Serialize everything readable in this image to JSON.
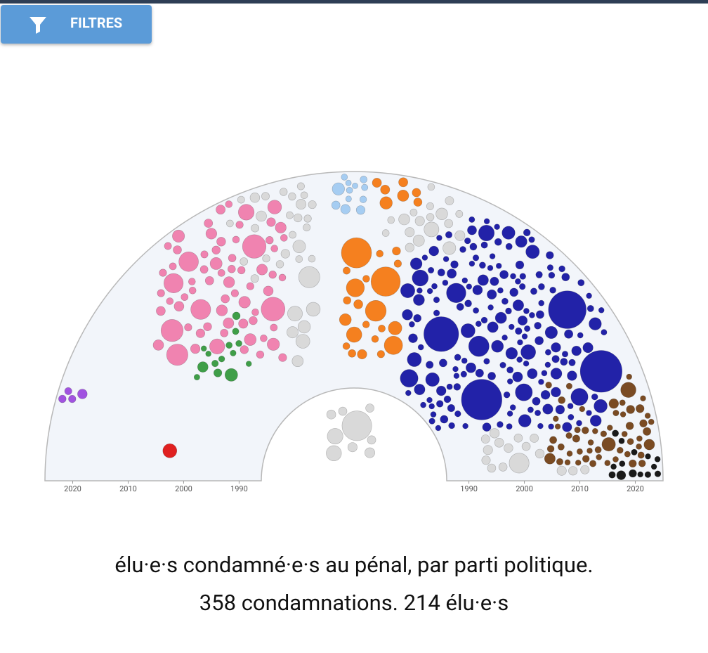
{
  "toolbar": {
    "button": "FILTRES"
  },
  "chart_data": {
    "type": "semicircle-bubble",
    "rlim": [
      1986,
      2025
    ],
    "rticks": [
      1990,
      2000,
      2010,
      2020
    ]
  },
  "caption": {
    "line1": "élu·e·s condamné·e·s au pénal, par parti politique.",
    "line2": "358 condamnations. 214 élu·e·s"
  }
}
